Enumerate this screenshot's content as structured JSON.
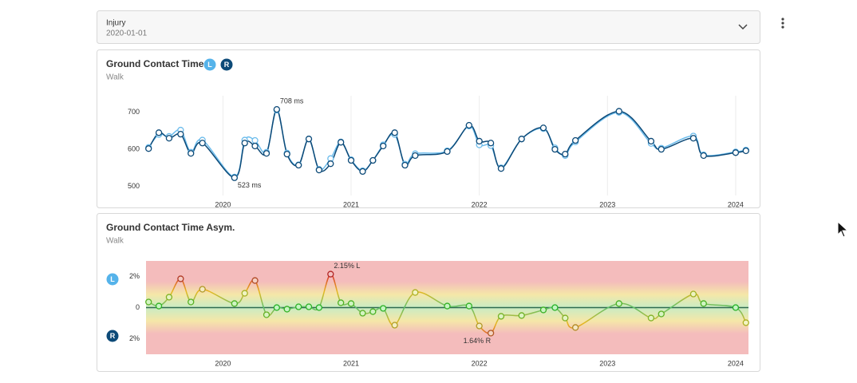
{
  "injury": {
    "label": "Injury",
    "date": "2020-01-01"
  },
  "chart_data": [
    {
      "type": "line",
      "title": "Ground Contact Time",
      "subtitle": "Walk",
      "x": [
        2019.42,
        2019.5,
        2019.58,
        2019.67,
        2019.75,
        2019.84,
        2020.09,
        2020.17,
        2020.25,
        2020.34,
        2020.42,
        2020.5,
        2020.59,
        2020.67,
        2020.75,
        2020.84,
        2020.92,
        2021.0,
        2021.09,
        2021.17,
        2021.25,
        2021.34,
        2021.42,
        2021.5,
        2021.75,
        2021.92,
        2022.0,
        2022.09,
        2022.17,
        2022.33,
        2022.5,
        2022.59,
        2022.67,
        2022.75,
        2023.09,
        2023.34,
        2023.42,
        2023.67,
        2023.75,
        2024.0,
        2024.08
      ],
      "series": [
        {
          "name": "L",
          "color": "#6cbcec",
          "values": [
            605,
            640,
            635,
            652,
            592,
            625,
            525,
            625,
            624,
            592,
            706,
            590,
            558,
            628,
            546,
            575,
            620,
            572,
            542,
            570,
            612,
            640,
            560,
            588,
            596,
            663,
            612,
            610,
            550,
            628,
            656,
            604,
            583,
            620,
            700,
            616,
            603,
            636,
            585,
            593,
            598
          ]
        },
        {
          "name": "R",
          "color": "#0d4a78",
          "values": [
            602,
            645,
            630,
            641,
            589,
            617,
            523,
            617,
            609,
            589,
            708,
            587,
            557,
            628,
            544,
            561,
            619,
            570,
            540,
            570,
            609,
            645,
            557,
            583,
            594,
            665,
            622,
            617,
            548,
            628,
            658,
            600,
            587,
            624,
            703,
            622,
            600,
            630,
            583,
            591,
            596
          ]
        }
      ],
      "xlim": [
        2019.4,
        2024.1
      ],
      "xticks": [
        2020,
        2021,
        2022,
        2023,
        2024
      ],
      "ylim": [
        475,
        745
      ],
      "yticks": [
        500,
        600,
        700
      ],
      "grid": true,
      "annotations": [
        {
          "text": "708 ms",
          "x": 2020.42,
          "y": 708
        },
        {
          "text": "523 ms",
          "x": 2020.09,
          "y": 523
        }
      ]
    },
    {
      "type": "line",
      "title": "Ground Contact Time Asym.",
      "subtitle": "Walk",
      "x": [
        2019.42,
        2019.5,
        2019.58,
        2019.67,
        2019.75,
        2019.84,
        2020.09,
        2020.17,
        2020.25,
        2020.34,
        2020.42,
        2020.5,
        2020.59,
        2020.67,
        2020.75,
        2020.84,
        2020.92,
        2021.0,
        2021.09,
        2021.17,
        2021.25,
        2021.34,
        2021.5,
        2021.75,
        2021.92,
        2022.0,
        2022.09,
        2022.17,
        2022.33,
        2022.5,
        2022.59,
        2022.67,
        2022.75,
        2023.09,
        2023.34,
        2023.42,
        2023.67,
        2023.75,
        2024.0,
        2024.08
      ],
      "values": [
        0.36,
        0.1,
        0.67,
        1.85,
        0.36,
        1.18,
        0.26,
        0.92,
        1.74,
        -0.46,
        0,
        -0.1,
        0.05,
        0.05,
        0,
        2.15,
        0.31,
        0.26,
        -0.36,
        -0.26,
        -0.05,
        -1.13,
        0.97,
        0.1,
        0.1,
        -1.18,
        -1.64,
        -0.56,
        -0.51,
        -0.15,
        0,
        -0.67,
        -1.28,
        0.26,
        -0.67,
        -0.41,
        0.87,
        0.26,
        0,
        -0.97
      ],
      "side_labels": [
        "L",
        "R"
      ],
      "xlim": [
        2019.4,
        2024.1
      ],
      "xticks": [
        2020,
        2021,
        2022,
        2023,
        2024
      ],
      "ylim": [
        -3,
        3
      ],
      "yticks": [
        {
          "value": 2,
          "label": "2%"
        },
        0,
        {
          "value": -2,
          "label": "2%"
        }
      ],
      "annotations": [
        {
          "text": "2.15% L",
          "x": 2020.84,
          "y": 2.15
        },
        {
          "text": "1.64% R",
          "x": 2022.09,
          "y": -1.64
        }
      ]
    }
  ]
}
